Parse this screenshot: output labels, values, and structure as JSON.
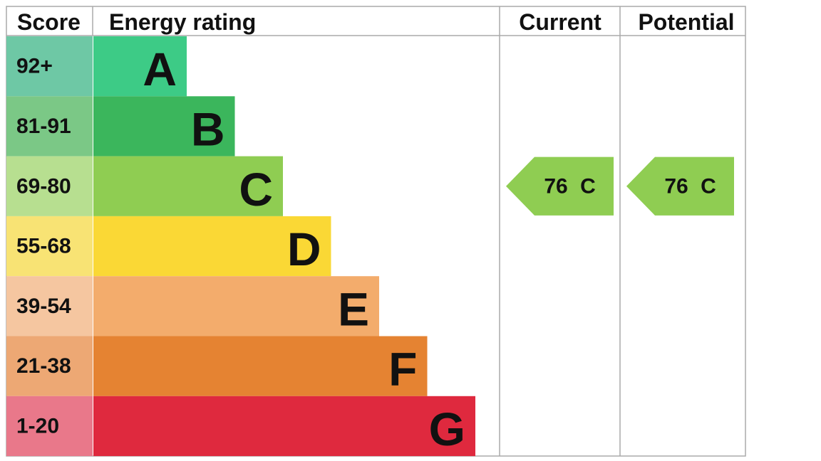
{
  "header": {
    "score": "Score",
    "energy_rating": "Energy rating",
    "current": "Current",
    "potential": "Potential"
  },
  "bands": [
    {
      "score": "92+",
      "letter": "A",
      "color": "#3dcb86",
      "score_color": "#6ec8a5"
    },
    {
      "score": "81-91",
      "letter": "B",
      "color": "#3bb65c",
      "score_color": "#7bc886"
    },
    {
      "score": "69-80",
      "letter": "C",
      "color": "#8fcd52",
      "score_color": "#b7df90"
    },
    {
      "score": "55-68",
      "letter": "D",
      "color": "#fad835",
      "score_color": "#f8e374"
    },
    {
      "score": "39-54",
      "letter": "E",
      "color": "#f3ac6c",
      "score_color": "#f5c6a0"
    },
    {
      "score": "21-38",
      "letter": "F",
      "color": "#e58332",
      "score_color": "#eda874"
    },
    {
      "score": "1-20",
      "letter": "G",
      "color": "#df293e",
      "score_color": "#e9788a"
    }
  ],
  "current": {
    "value": 76,
    "letter": "C",
    "color": "#8fcd52"
  },
  "potential": {
    "value": 76,
    "letter": "C",
    "color": "#8fcd52"
  }
}
